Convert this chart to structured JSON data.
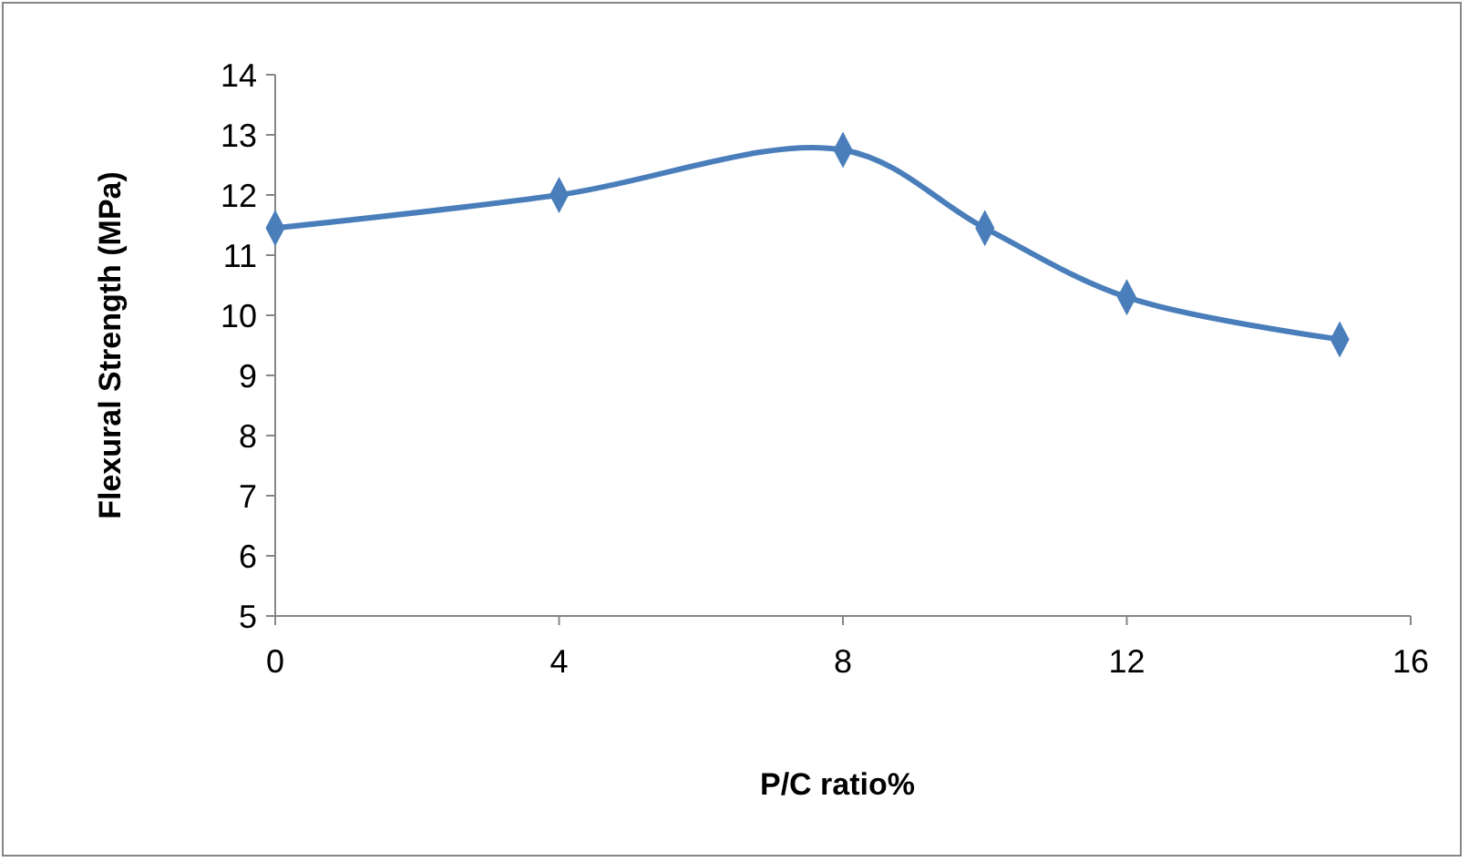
{
  "chart_data": {
    "type": "line",
    "xlabel": "P/C ratio%",
    "ylabel": "Flexural Strength (MPa)",
    "x": [
      0,
      4,
      8,
      10,
      12,
      15
    ],
    "series": [
      {
        "color": "#4a7ebb",
        "values": [
          11.45,
          12.0,
          12.75,
          11.45,
          10.3,
          9.6
        ]
      }
    ],
    "xlim": [
      0,
      16
    ],
    "xticks": [
      0,
      4,
      8,
      12,
      16
    ],
    "ylim": [
      5,
      14
    ],
    "yticks": [
      5,
      6,
      7,
      8,
      9,
      10,
      11,
      12,
      13,
      14
    ],
    "grid": false,
    "marker": "diamond",
    "line_style": "solid"
  }
}
